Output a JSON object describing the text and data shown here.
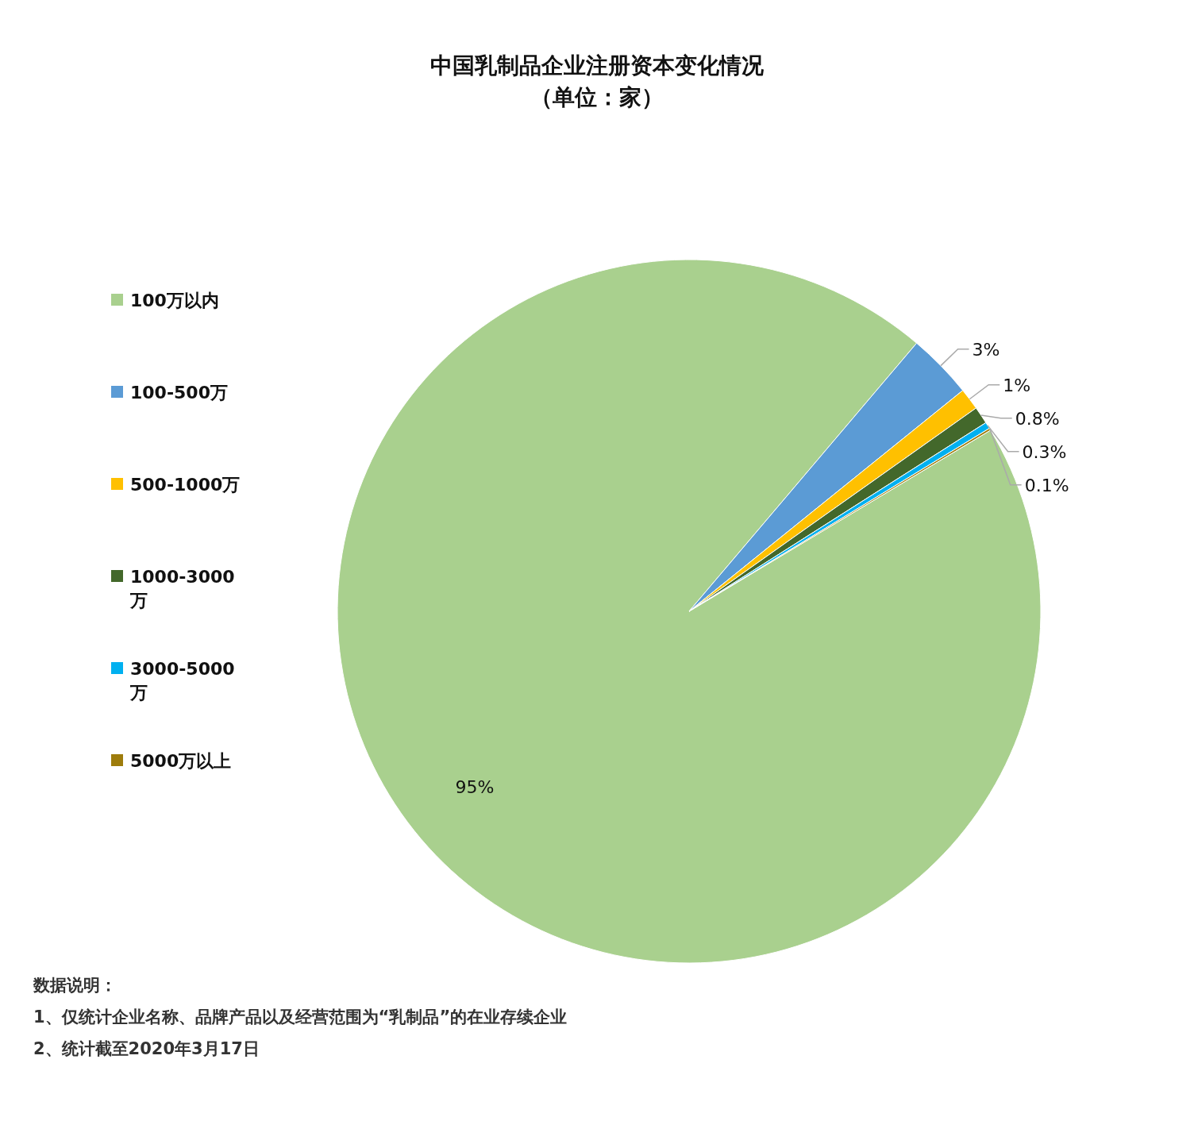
{
  "chart_data": {
    "type": "pie",
    "title": "中国乳制品企业注册资本变化情况",
    "subtitle": "（单位：家）",
    "categories": [
      "100万以内",
      "100-500万",
      "500-1000万",
      "1000-3000万",
      "3000-5000万",
      "5000万以上"
    ],
    "values": [
      95,
      3,
      1,
      0.8,
      0.3,
      0.1
    ],
    "colors": [
      "#a9d08e",
      "#5b9bd5",
      "#ffc000",
      "#43682b",
      "#00b0f0",
      "#9e7c0c"
    ],
    "value_labels": [
      "95%",
      "3%",
      "1%",
      "0.8%",
      "0.3%",
      "0.1%"
    ],
    "legend": "left",
    "annotations": [
      "数据说明：",
      "1、仅统计企业名称、品牌产品以及经营范围为“乳制品”的在业存续企业",
      "2、统计截至2020年3月17日"
    ]
  }
}
